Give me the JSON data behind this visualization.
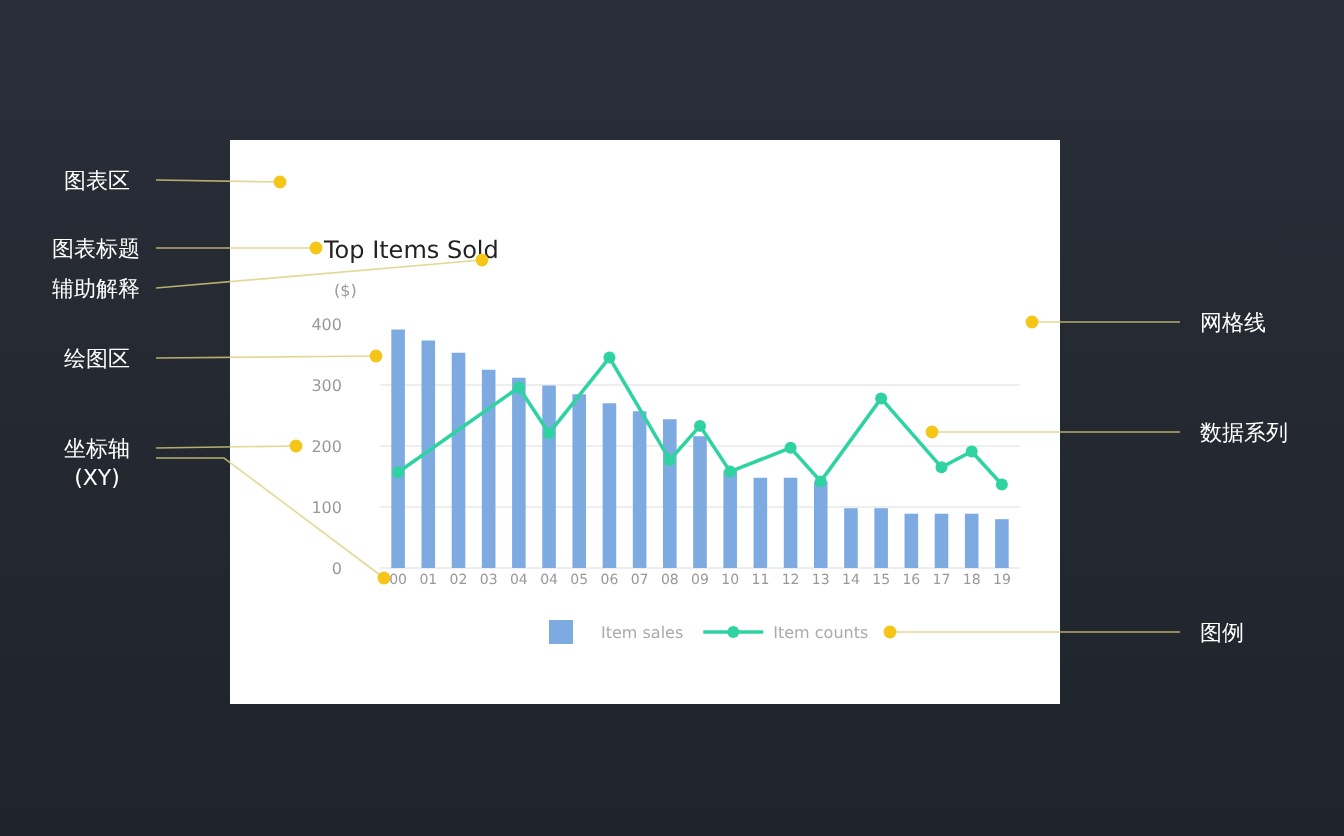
{
  "chart_data": {
    "type": "bar",
    "title": "Top Items Sold",
    "ylabel": "($)",
    "categories": [
      "00",
      "01",
      "02",
      "03",
      "04",
      "04",
      "05",
      "06",
      "07",
      "08",
      "09",
      "10",
      "11",
      "12",
      "13",
      "14",
      "15",
      "16",
      "17",
      "18",
      "19"
    ],
    "series": [
      {
        "name": "Item sales",
        "color": "#7eaae2",
        "values": [
          391,
          373,
          353,
          325,
          312,
          299,
          285,
          270,
          257,
          244,
          216,
          160,
          148,
          148,
          142,
          98,
          98,
          89,
          89,
          89,
          80
        ]
      },
      {
        "name": "Item counts",
        "type": "line",
        "color": "#2fd3a2",
        "marker": "circle",
        "values": [
          157,
          null,
          null,
          null,
          296,
          221,
          null,
          345,
          null,
          177,
          233,
          158,
          null,
          197,
          142,
          null,
          278,
          null,
          165,
          191,
          137
        ]
      }
    ],
    "ylim": [
      0,
      400
    ],
    "yticks": [
      0,
      100,
      200,
      300,
      400
    ],
    "grid": "y",
    "legend": "bottom",
    "annotations": [
      "图表区",
      "图表标题",
      "辅助解释",
      "绘图区",
      "坐标轴\n(XY)",
      "网格线",
      "数据系列",
      "图例"
    ]
  }
}
